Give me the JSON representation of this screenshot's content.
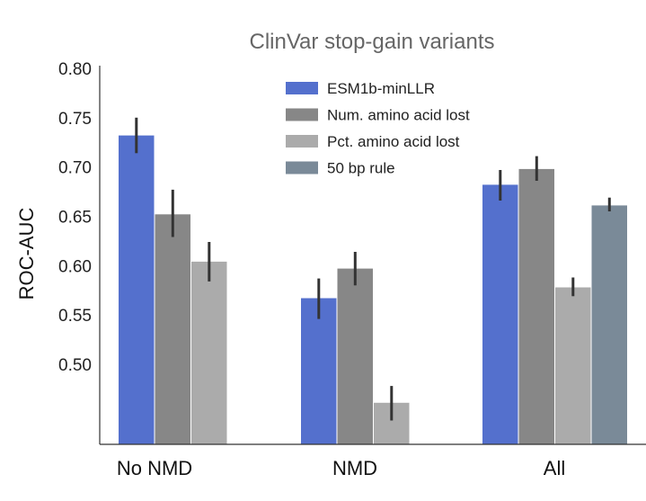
{
  "chart_data": {
    "type": "bar",
    "title": "ClinVar stop-gain variants",
    "xlabel": "",
    "ylabel": "ROC-AUC",
    "ylim": [
      0.425,
      0.8
    ],
    "yticks": [
      "0.80",
      "0.75",
      "0.70",
      "0.65",
      "0.60",
      "0.55",
      "0.50"
    ],
    "ytick_values": [
      0.8,
      0.75,
      0.7,
      0.65,
      0.6,
      0.55,
      0.5
    ],
    "categories": [
      "No NMD",
      "NMD",
      "All"
    ],
    "legend_position": "top-center",
    "series": [
      {
        "name": "ESM1b-minLLR",
        "color": "#5470cd",
        "values": [
          0.732,
          0.567,
          0.682
        ],
        "err_low": [
          0.714,
          0.546,
          0.666
        ],
        "err_high": [
          0.75,
          0.587,
          0.697
        ]
      },
      {
        "name": "Num. amino acid lost",
        "color": "#878787",
        "values": [
          0.652,
          0.597,
          0.698
        ],
        "err_low": [
          0.629,
          0.58,
          0.686
        ],
        "err_high": [
          0.677,
          0.614,
          0.711
        ]
      },
      {
        "name": "Pct. amino acid lost",
        "color": "#ababab",
        "values": [
          0.604,
          0.461,
          0.578
        ],
        "err_low": [
          0.584,
          0.443,
          0.569
        ],
        "err_high": [
          0.624,
          0.478,
          0.588
        ]
      },
      {
        "name": "50 bp rule",
        "color": "#7a8a98",
        "values": [
          null,
          null,
          0.661
        ],
        "err_low": [
          null,
          null,
          0.655
        ],
        "err_high": [
          null,
          null,
          0.669
        ]
      }
    ]
  }
}
